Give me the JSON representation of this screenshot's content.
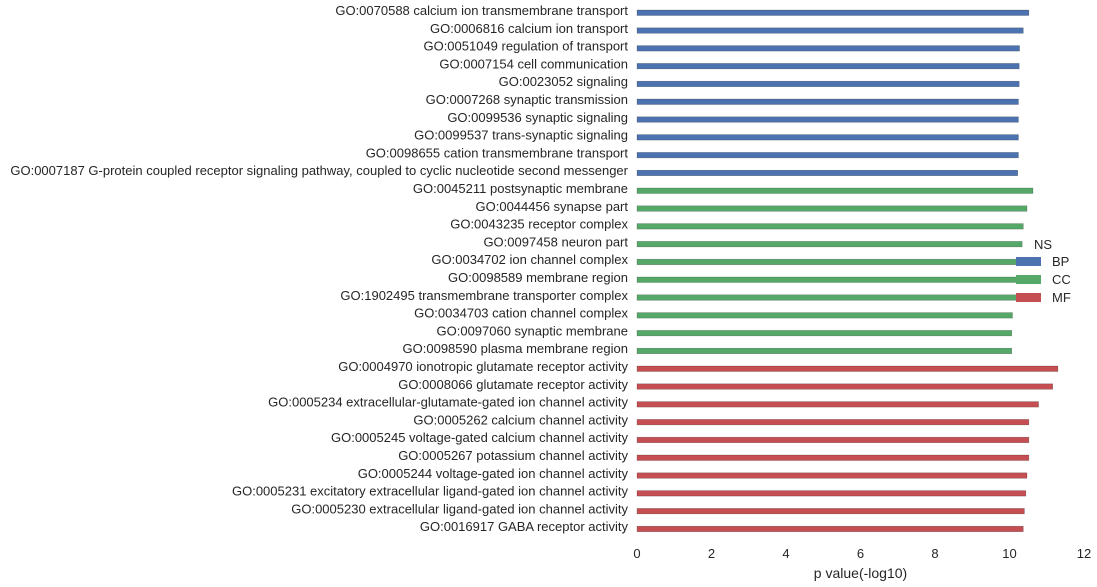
{
  "chart_data": {
    "type": "bar",
    "orientation": "horizontal",
    "xlabel": "p value(-log10)",
    "xlim": [
      0,
      12
    ],
    "xticks": [
      0,
      2,
      4,
      6,
      8,
      10,
      12
    ],
    "grid": false,
    "legend": {
      "title": "NS",
      "placement": "right",
      "entries": [
        {
          "name": "BP",
          "color": "#4c72b0"
        },
        {
          "name": "CC",
          "color": "#55a868"
        },
        {
          "name": "MF",
          "color": "#c44e52"
        }
      ]
    },
    "categories": [
      "GO:0070588 calcium ion transmembrane transport",
      "GO:0006816 calcium ion transport",
      "GO:0051049 regulation of transport",
      "GO:0007154 cell communication",
      "GO:0023052 signaling",
      "GO:0007268 synaptic transmission",
      "GO:0099536 synaptic signaling",
      "GO:0099537 trans-synaptic signaling",
      "GO:0098655 cation transmembrane transport",
      "GO:0007187 G-protein coupled receptor signaling pathway, coupled to cyclic nucleotide second messenger",
      "GO:0045211 postsynaptic membrane",
      "GO:0044456 synapse part",
      "GO:0043235 receptor complex",
      "GO:0097458 neuron part",
      "GO:0034702 ion channel complex",
      "GO:0098589 membrane region",
      "GO:1902495 transmembrane transporter complex",
      "GO:0034703 cation channel complex",
      "GO:0097060 synaptic membrane",
      "GO:0098590 plasma membrane region",
      "GO:0004970 ionotropic glutamate receptor activity",
      "GO:0008066 glutamate receptor activity",
      "GO:0005234 extracellular-glutamate-gated ion channel activity",
      "GO:0005262 calcium channel activity",
      "GO:0005245 voltage-gated calcium channel activity",
      "GO:0005267 potassium channel activity",
      "GO:0005244 voltage-gated ion channel activity",
      "GO:0005231 excitatory extracellular ligand-gated ion channel activity",
      "GO:0005230 extracellular ligand-gated ion channel activity",
      "GO:0016917 GABA receptor activity"
    ],
    "groups": [
      "BP",
      "BP",
      "BP",
      "BP",
      "BP",
      "BP",
      "BP",
      "BP",
      "BP",
      "BP",
      "CC",
      "CC",
      "CC",
      "CC",
      "CC",
      "CC",
      "CC",
      "CC",
      "CC",
      "CC",
      "MF",
      "MF",
      "MF",
      "MF",
      "MF",
      "MF",
      "MF",
      "MF",
      "MF",
      "MF"
    ],
    "values": [
      10.52,
      10.37,
      10.27,
      10.26,
      10.26,
      10.24,
      10.24,
      10.24,
      10.24,
      10.22,
      10.63,
      10.47,
      10.37,
      10.34,
      10.26,
      10.24,
      10.22,
      10.08,
      10.06,
      10.06,
      11.3,
      11.16,
      10.78,
      10.52,
      10.52,
      10.52,
      10.47,
      10.44,
      10.4,
      10.37
    ]
  }
}
